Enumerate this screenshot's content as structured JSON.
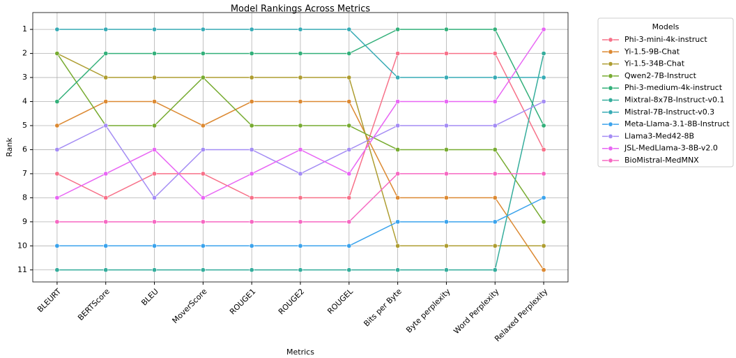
{
  "chart_data": {
    "type": "line",
    "title": "Model Rankings Across Metrics",
    "xlabel": "Metrics",
    "ylabel": "Rank",
    "legend_title": "Models",
    "legend": "outside upper right",
    "grid": true,
    "y_inverted": true,
    "categories": [
      "BLEURT",
      "BERTScore",
      "BLEU",
      "MoverScore",
      "ROUGE1",
      "ROUGE2",
      "ROUGEL",
      "Bits per Byte",
      "Byte perplexity",
      "Word Perplexity",
      "Relaxed Perplexity"
    ],
    "ylim": [
      0.3,
      11.5
    ],
    "yticks": [
      1,
      2,
      3,
      4,
      5,
      6,
      7,
      8,
      9,
      10,
      11
    ],
    "series": [
      {
        "name": "Phi-3-mini-4k-instruct",
        "color": "#f77189",
        "values": [
          7,
          8,
          7,
          7,
          8,
          8,
          8,
          2,
          2,
          2,
          6
        ]
      },
      {
        "name": "Yi-1.5-9B-Chat",
        "color": "#dc8932",
        "values": [
          5,
          4,
          4,
          5,
          4,
          4,
          4,
          8,
          8,
          8,
          11
        ]
      },
      {
        "name": "Yi-1.5-34B-Chat",
        "color": "#ae9d31",
        "values": [
          2,
          3,
          3,
          3,
          3,
          3,
          3,
          10,
          10,
          10,
          10
        ]
      },
      {
        "name": "Qwen2-7B-Instruct",
        "color": "#77ab31",
        "values": [
          2,
          5,
          5,
          3,
          5,
          5,
          5,
          6,
          6,
          6,
          9
        ]
      },
      {
        "name": "Phi-3-medium-4k-instruct",
        "color": "#33b07a",
        "values": [
          4,
          2,
          2,
          2,
          2,
          2,
          2,
          1,
          1,
          1,
          5
        ]
      },
      {
        "name": "Mixtral-8x7B-Instruct-v0.1",
        "color": "#35ad9c",
        "values": [
          11,
          11,
          11,
          11,
          11,
          11,
          11,
          11,
          11,
          11,
          2
        ]
      },
      {
        "name": "Mistral-7B-Instruct-v0.3",
        "color": "#37abb5",
        "values": [
          1,
          1,
          1,
          1,
          1,
          1,
          1,
          3,
          3,
          3,
          3
        ]
      },
      {
        "name": "Meta-Llama-3.1-8B-Instruct",
        "color": "#3ba3ec",
        "values": [
          10,
          10,
          10,
          10,
          10,
          10,
          10,
          9,
          9,
          9,
          8
        ]
      },
      {
        "name": "Llama3-Med42-8B",
        "color": "#a48cf4",
        "values": [
          6,
          5,
          8,
          6,
          6,
          7,
          6,
          5,
          5,
          5,
          4
        ]
      },
      {
        "name": "JSL-MedLlama-3-8B-v2.0",
        "color": "#e866f4",
        "values": [
          8,
          7,
          6,
          8,
          7,
          6,
          7,
          4,
          4,
          4,
          1
        ]
      },
      {
        "name": "BioMistral-MedMNX",
        "color": "#f668c2",
        "values": [
          9,
          9,
          9,
          9,
          9,
          9,
          9,
          7,
          7,
          7,
          7
        ]
      }
    ]
  }
}
